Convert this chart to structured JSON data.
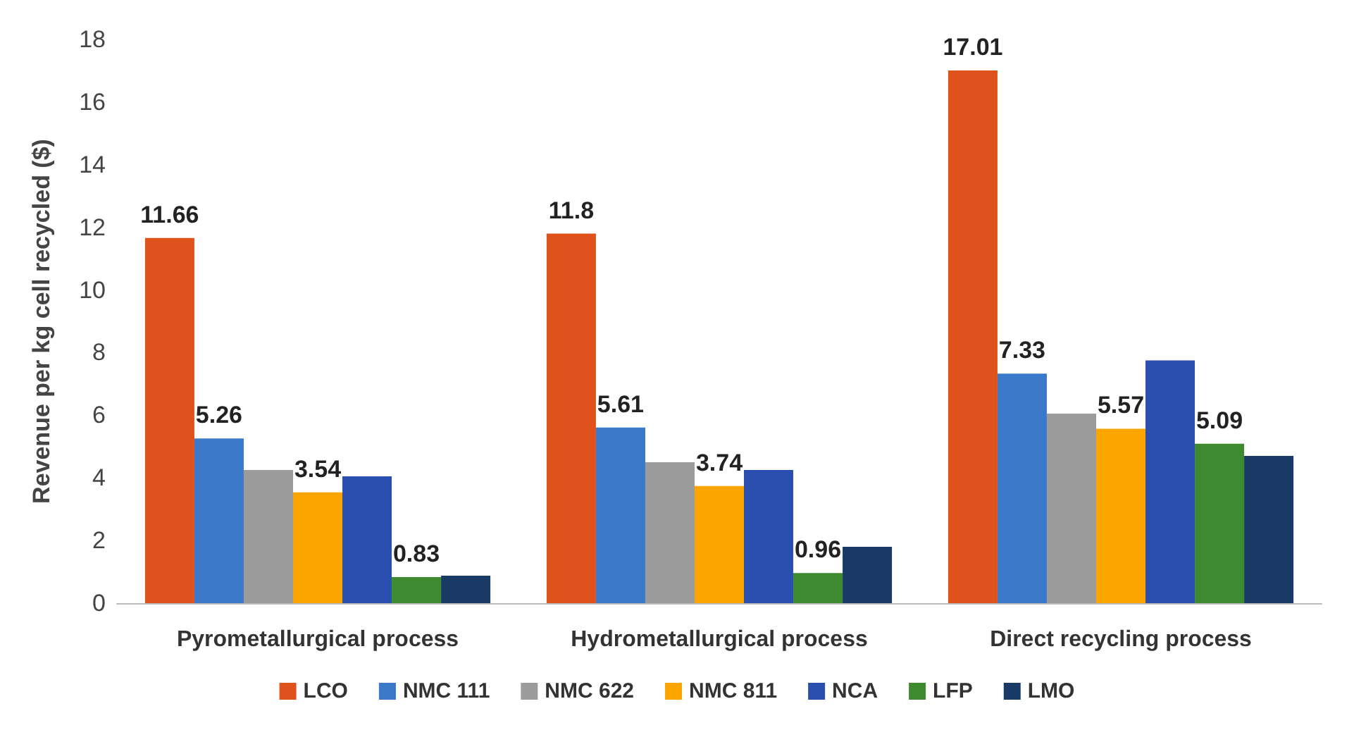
{
  "chart_data": {
    "type": "bar",
    "ylabel": "Revenue per kg cell recycled ($)",
    "categories": [
      "Pyrometallurgical process",
      "Hydrometallurgical process",
      "Direct recycling process"
    ],
    "series": [
      {
        "name": "LCO",
        "color": "#e0521b",
        "values": [
          11.66,
          11.8,
          17.01
        ],
        "value_labels": [
          "11.66",
          "11.8",
          "17.01"
        ]
      },
      {
        "name": "NMC 111",
        "color": "#3a78c9",
        "values": [
          5.26,
          5.61,
          7.33
        ],
        "value_labels": [
          "5.26",
          "5.61",
          "7.33"
        ]
      },
      {
        "name": "NMC 622",
        "color": "#9b9b9b",
        "values": [
          4.25,
          4.5,
          6.05
        ]
      },
      {
        "name": "NMC 811",
        "color": "#fca500",
        "values": [
          3.54,
          3.74,
          5.57
        ],
        "value_labels": [
          "3.54",
          "3.74",
          "5.57"
        ]
      },
      {
        "name": "NCA",
        "color": "#2a4fae",
        "values": [
          4.05,
          4.25,
          7.75
        ]
      },
      {
        "name": "LFP",
        "color": "#3e8a2e",
        "values": [
          0.83,
          0.96,
          5.09
        ],
        "value_labels": [
          "0.83",
          "0.96",
          "5.09"
        ]
      },
      {
        "name": "LMO",
        "color": "#1a3a66",
        "values": [
          0.88,
          1.8,
          4.7
        ]
      }
    ],
    "ylim": [
      0,
      18
    ],
    "yticks": [
      0,
      2,
      4,
      6,
      8,
      10,
      12,
      14,
      16,
      18
    ],
    "grid": false,
    "legend": "bottom"
  }
}
